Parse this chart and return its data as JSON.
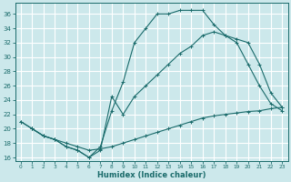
{
  "bg_color": "#cce8eb",
  "grid_color": "#ffffff",
  "line_color": "#1a6b6b",
  "xlabel": "Humidex (Indice chaleur)",
  "xlim": [
    -0.5,
    23.5
  ],
  "ylim": [
    15.5,
    37.5
  ],
  "xticks": [
    0,
    1,
    2,
    3,
    4,
    5,
    6,
    7,
    8,
    9,
    10,
    11,
    12,
    13,
    14,
    15,
    16,
    17,
    18,
    19,
    20,
    21,
    22,
    23
  ],
  "yticks": [
    16,
    18,
    20,
    22,
    24,
    26,
    28,
    30,
    32,
    34,
    36
  ],
  "curve_top_x": [
    0,
    1,
    2,
    3,
    4,
    5,
    6,
    7,
    8,
    9,
    10,
    11,
    12,
    13,
    14,
    15,
    16,
    17,
    18,
    19,
    20,
    21,
    22,
    23
  ],
  "curve_top_y": [
    21.0,
    20.0,
    19.0,
    18.5,
    17.5,
    17.0,
    16.0,
    17.5,
    22.5,
    26.5,
    32.0,
    34.0,
    36.0,
    36.0,
    36.5,
    36.5,
    36.5,
    34.5,
    33.0,
    32.5,
    32.0,
    29.0,
    25.0,
    23.0
  ],
  "curve_mid_x": [
    0,
    1,
    2,
    3,
    4,
    5,
    6,
    7,
    8,
    9,
    10,
    11,
    12,
    13,
    14,
    15,
    16,
    17,
    18,
    19,
    20,
    21,
    22,
    23
  ],
  "curve_mid_y": [
    21.0,
    20.0,
    19.0,
    18.5,
    17.5,
    17.0,
    16.0,
    17.0,
    24.5,
    22.0,
    24.5,
    26.0,
    27.5,
    29.0,
    30.5,
    31.5,
    33.0,
    33.5,
    33.0,
    32.0,
    29.0,
    26.0,
    23.5,
    22.5
  ],
  "curve_bot_x": [
    1,
    2,
    3,
    4,
    5,
    6,
    7,
    8,
    9,
    10,
    11,
    12,
    13,
    14,
    15,
    16,
    17,
    18,
    19,
    20,
    21,
    22,
    23
  ],
  "curve_bot_y": [
    20.0,
    19.0,
    18.5,
    18.0,
    17.5,
    17.0,
    17.2,
    17.5,
    18.0,
    18.5,
    19.0,
    19.5,
    20.0,
    20.5,
    21.0,
    21.5,
    21.8,
    22.0,
    22.2,
    22.4,
    22.5,
    22.8,
    23.0
  ]
}
